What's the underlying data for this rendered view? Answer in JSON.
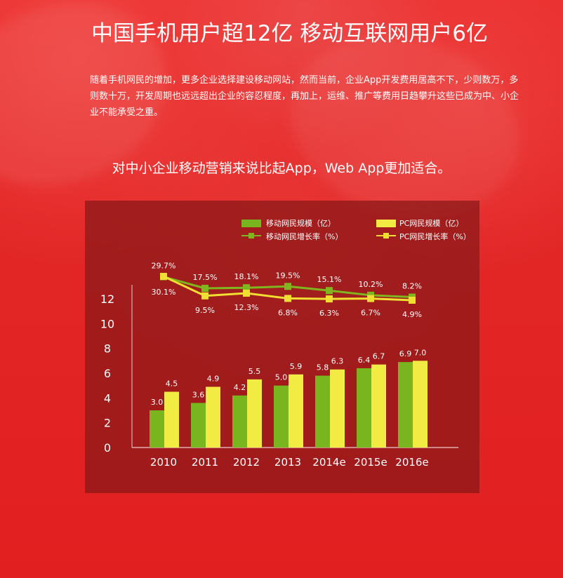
{
  "page": {
    "headline": "中国手机用户超12亿  移动互联网用户6亿",
    "intro": "随着手机网民的增加，更多企业选择建设移动网站，然而当前，企业App开发费用居高不下，少则数万，多则数十万，开发周期也远远超出企业的容忍程度，再加上，运维、推广等费用日趋攀升这些已成为中、小企业不能承受之重。",
    "subheadline": "对中小企业移动营销来说比起App，Web App更加适合。"
  },
  "chart_data": {
    "type": "bar",
    "categories": [
      "2010",
      "2011",
      "2012",
      "2013",
      "2014e",
      "2015e",
      "2016e"
    ],
    "title": "",
    "xlabel": "",
    "ylabel": "",
    "ylim": [
      0,
      12
    ],
    "yticks": [
      0,
      2,
      4,
      6,
      8,
      10,
      12
    ],
    "series": [
      {
        "name": "移动网民规模（亿）",
        "kind": "bar",
        "color": "#79b51e",
        "values": [
          3.0,
          3.6,
          4.2,
          5.0,
          5.8,
          6.4,
          6.9
        ],
        "value_labels": [
          "3.0",
          "3.6",
          "4.2",
          "5.0",
          "5.8",
          "6.4",
          "6.9"
        ]
      },
      {
        "name": "PC网民规模（亿）",
        "kind": "bar",
        "color": "#f2eb43",
        "values": [
          4.5,
          4.9,
          5.5,
          5.9,
          6.3,
          6.7,
          7.0
        ],
        "value_labels": [
          "4.5",
          "4.9",
          "5.5",
          "5.9",
          "6.3",
          "6.7",
          "7.0"
        ]
      },
      {
        "name": "移动网民增长率（%）",
        "kind": "line",
        "color": "#7fb51f",
        "values": [
          29.7,
          17.5,
          18.1,
          19.5,
          15.1,
          10.2,
          8.2
        ],
        "value_labels": [
          "29.7%",
          "17.5%",
          "18.1%",
          "19.5%",
          "15.1%",
          "10.2%",
          "8.2%"
        ]
      },
      {
        "name": "PC网民增长率（%）",
        "kind": "line",
        "color": "#f0df32",
        "values": [
          30.1,
          9.5,
          12.3,
          6.8,
          6.3,
          6.7,
          4.9
        ],
        "value_labels": [
          "30.1%",
          "9.5%",
          "12.3%",
          "6.8%",
          "6.3%",
          "6.7%",
          "4.9%"
        ]
      }
    ],
    "legend_position": "top"
  }
}
